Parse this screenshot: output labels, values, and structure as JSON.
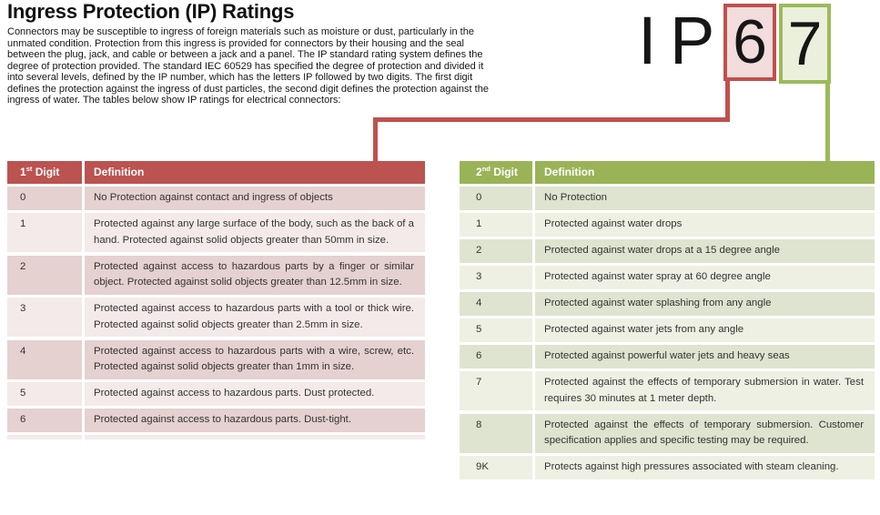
{
  "page": {
    "title": "Ingress Protection (IP) Ratings",
    "intro": "Connectors may be susceptible to ingress of foreign materials such as moisture or dust, particularly in the unmated condition. Protection from this ingress is provided for connectors by their housing and the seal between the plug, jack, and cable or between a jack and a panel. The IP standard rating system defines the degree of protection provided. The standard IEC 60529 has specified the degree of protection and divided it into several levels, defined by the IP number, which has the letters IP followed by two digits. The first digit defines the protection against the ingress of dust particles, the second digit defines the protection against the ingress of water. The tables below show IP ratings for electrical connectors:"
  },
  "ip_graphic": {
    "letter_i": "I",
    "letter_p": "P",
    "first_digit": "6",
    "second_digit": "7"
  },
  "colors": {
    "red_accent": "#c0504d",
    "red_header": "#bb5350",
    "red_band_dark": "#e5d1cf",
    "red_band_light": "#f4eae9",
    "red_box_fill": "#f2dddc",
    "green_accent": "#9bbb59",
    "green_header": "#9ab357",
    "green_band_dark": "#dee4cf",
    "green_band_light": "#eef0e3",
    "green_box_fill": "#ebf0dd"
  },
  "first_digit_table": {
    "header": {
      "number": "1",
      "suffix": "st",
      "word": " Digit",
      "definition": "Definition"
    },
    "rows": [
      {
        "digit": "0",
        "definition": "No Protection against contact and ingress of objects"
      },
      {
        "digit": "1",
        "definition": "Protected against any large surface of the body, such as the back of a hand. Protected against solid objects greater than 50mm in size."
      },
      {
        "digit": "2",
        "definition": "Protected against access to hazardous parts by a finger or similar object. Protected against solid objects greater than 12.5mm in size."
      },
      {
        "digit": "3",
        "definition": "Protected against access to hazardous parts with a tool or thick wire. Protected against solid objects greater than 2.5mm in size."
      },
      {
        "digit": "4",
        "definition": "Protected against access to hazardous parts with a wire, screw, etc. Protected against solid objects greater than 1mm in size."
      },
      {
        "digit": "5",
        "definition": "Protected against access to hazardous parts. Dust protected."
      },
      {
        "digit": "6",
        "definition": "Protected against access to hazardous parts. Dust-tight."
      }
    ]
  },
  "second_digit_table": {
    "header": {
      "number": "2",
      "suffix": "nd",
      "word": " Digit",
      "definition": "Definition"
    },
    "rows": [
      {
        "digit": "0",
        "definition": "No Protection"
      },
      {
        "digit": "1",
        "definition": "Protected against water drops"
      },
      {
        "digit": "2",
        "definition": "Protected against water drops at a 15 degree angle"
      },
      {
        "digit": "3",
        "definition": "Protected against water spray at 60 degree angle"
      },
      {
        "digit": "4",
        "definition": "Protected against water splashing from any angle"
      },
      {
        "digit": "5",
        "definition": "Protected against water jets from any angle"
      },
      {
        "digit": "6",
        "definition": "Protected against powerful water jets and heavy seas"
      },
      {
        "digit": "7",
        "definition": "Protected against the effects of temporary submersion in water. Test requires 30 minutes at 1 meter depth."
      },
      {
        "digit": "8",
        "definition": "Protected against the effects of temporary submersion. Customer specification applies and specific testing may be required."
      },
      {
        "digit": "9K",
        "definition": "Protects against high pressures associated with steam cleaning."
      }
    ]
  }
}
